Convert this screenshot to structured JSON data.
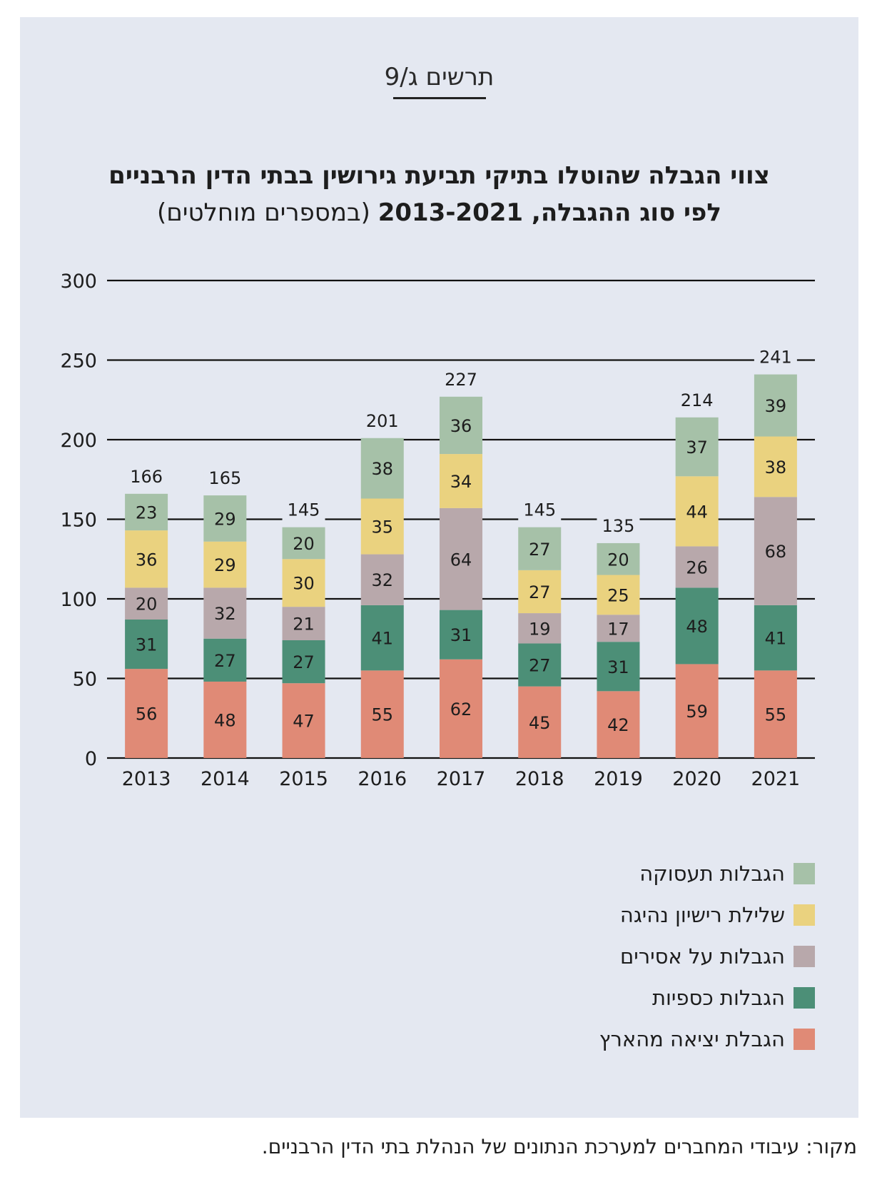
{
  "figure_label": "תרשים ג/9",
  "title_line1": "צווי הגבלה שהוטלו בתיקי תביעת גירושין בבתי הדין הרבניים",
  "title_line2_bold": "לפי סוג ההגבלה, 2013-2021",
  "title_line2_rest": "(במספרים מוחלטים)",
  "source": "מקור: עיבודי המחברים למערכת הנתונים של הנהלת בתי הדין הרבניים.",
  "chart_data": {
    "type": "bar",
    "stacked": true,
    "categories": [
      "2013",
      "2014",
      "2015",
      "2016",
      "2017",
      "2018",
      "2019",
      "2020",
      "2021"
    ],
    "ylim": [
      0,
      300
    ],
    "yticks": [
      0,
      50,
      100,
      150,
      200,
      250,
      300
    ],
    "grid": true,
    "legend_position": "bottom-right",
    "series": [
      {
        "name": "הגבלת יציאה מהארץ",
        "color": "#e08a76",
        "values": [
          56,
          48,
          47,
          55,
          62,
          45,
          42,
          59,
          55
        ]
      },
      {
        "name": "הגבלות כספיות",
        "color": "#4c8f77",
        "values": [
          31,
          27,
          27,
          41,
          31,
          27,
          31,
          48,
          41
        ]
      },
      {
        "name": "הגבלות על אסירים",
        "color": "#b8a8ab",
        "values": [
          20,
          32,
          21,
          32,
          64,
          19,
          17,
          26,
          68
        ]
      },
      {
        "name": "שלילת רישיון נהיגה",
        "color": "#ead27f",
        "values": [
          36,
          29,
          30,
          35,
          34,
          27,
          25,
          44,
          38
        ]
      },
      {
        "name": "הגבלות תעסוקה",
        "color": "#a6c1a8",
        "values": [
          23,
          29,
          20,
          38,
          36,
          27,
          20,
          37,
          39
        ]
      }
    ],
    "totals": [
      166,
      165,
      145,
      201,
      227,
      145,
      135,
      214,
      241
    ]
  }
}
